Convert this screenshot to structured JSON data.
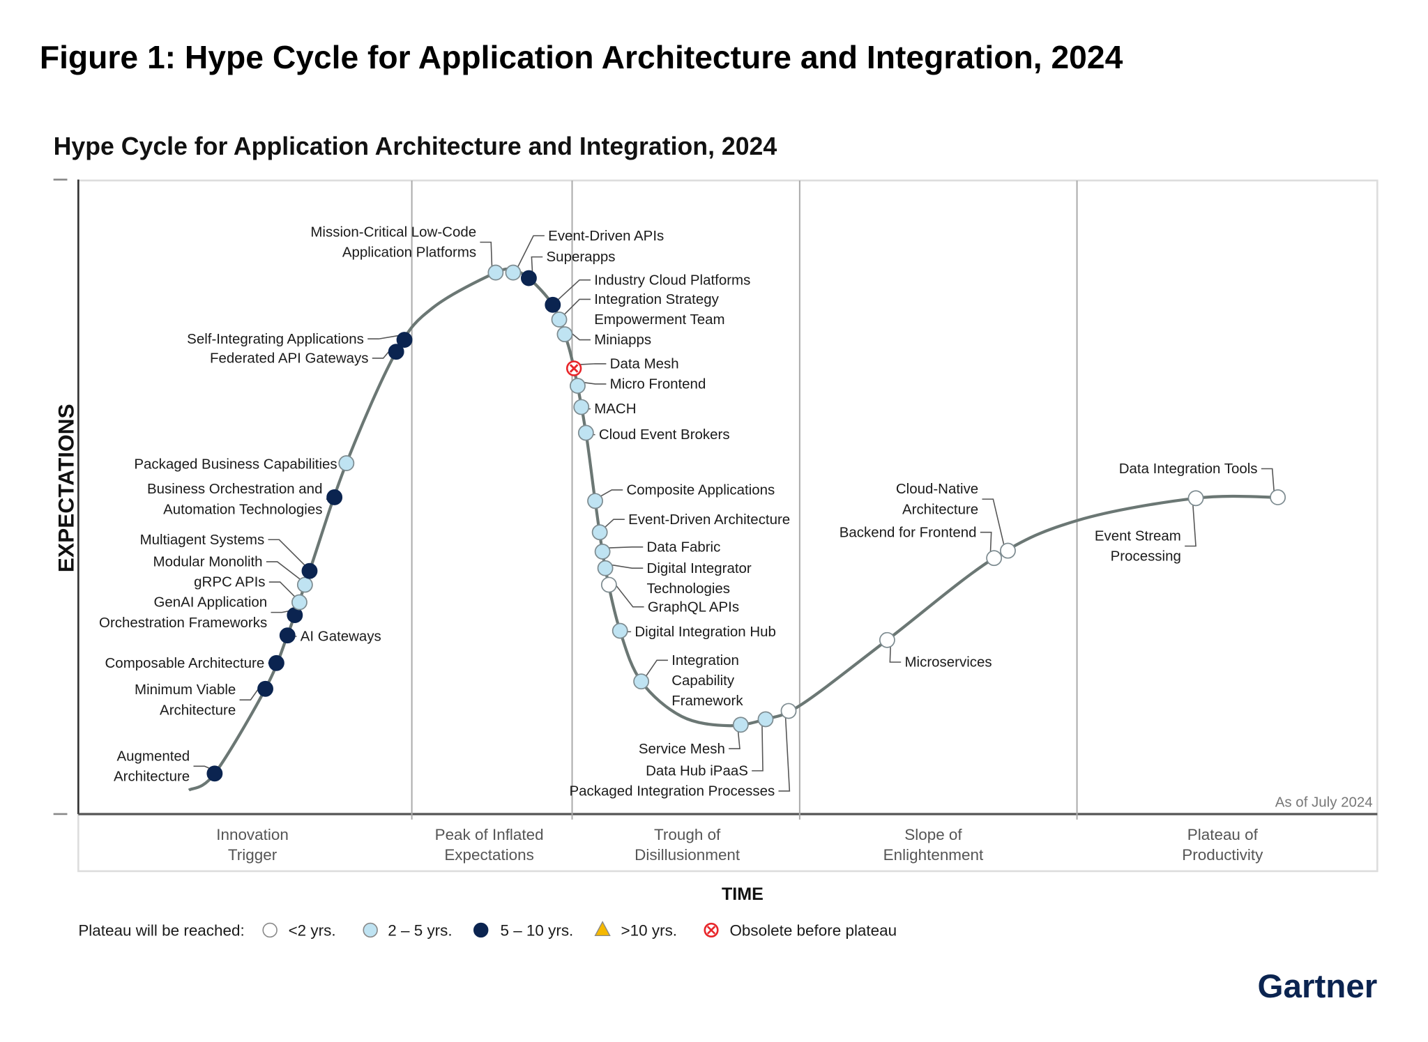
{
  "figure_title": "Figure 1: Hype Cycle for Application Architecture and Integration, 2024",
  "chart_data": {
    "type": "hype-cycle",
    "title": "Hype Cycle for Application Architecture and Integration, 2024",
    "ylabel": "EXPECTATIONS",
    "xlabel": "TIME",
    "as_of": "As of July 2024",
    "phases": [
      [
        "Innovation",
        "Trigger"
      ],
      [
        "Peak of Inflated",
        "Expectations"
      ],
      [
        "Trough of",
        "Disillusionment"
      ],
      [
        "Slope of",
        "Enlightenment"
      ],
      [
        "Plateau of",
        "Productivity"
      ]
    ],
    "legend": {
      "title": "Plateau will be reached:",
      "entries": [
        {
          "key": "lt2",
          "label": "<2 yrs.",
          "color": "#ffffff"
        },
        {
          "key": "2to5",
          "label": "2 – 5 yrs.",
          "color": "#bfe3f2"
        },
        {
          "key": "5to10",
          "label": "5 – 10 yrs.",
          "color": "#0b2450"
        },
        {
          "key": "gt10",
          "label": ">10 yrs.",
          "color": "#f5b800"
        },
        {
          "key": "obsolete",
          "label": "Obsolete before plateau",
          "color": "#e8262a"
        }
      ]
    },
    "items": [
      {
        "lines": [
          "Augmented",
          "Architecture"
        ],
        "phase": "Innovation Trigger",
        "plateau": "5to10"
      },
      {
        "lines": [
          "Minimum Viable",
          "Architecture"
        ],
        "phase": "Innovation Trigger",
        "plateau": "5to10"
      },
      {
        "lines": [
          "Composable Architecture"
        ],
        "phase": "Innovation Trigger",
        "plateau": "5to10"
      },
      {
        "lines": [
          "AI Gateways"
        ],
        "phase": "Innovation Trigger",
        "plateau": "5to10"
      },
      {
        "lines": [
          "GenAI Application",
          "Orchestration Frameworks"
        ],
        "phase": "Innovation Trigger",
        "plateau": "5to10"
      },
      {
        "lines": [
          "gRPC APIs"
        ],
        "phase": "Innovation Trigger",
        "plateau": "2to5"
      },
      {
        "lines": [
          "Modular Monolith"
        ],
        "phase": "Innovation Trigger",
        "plateau": "2to5"
      },
      {
        "lines": [
          "Multiagent Systems"
        ],
        "phase": "Innovation Trigger",
        "plateau": "5to10"
      },
      {
        "lines": [
          "Business Orchestration and",
          "Automation Technologies"
        ],
        "phase": "Innovation Trigger",
        "plateau": "5to10"
      },
      {
        "lines": [
          "Packaged Business Capabilities"
        ],
        "phase": "Innovation Trigger",
        "plateau": "2to5"
      },
      {
        "lines": [
          "Federated API Gateways"
        ],
        "phase": "Innovation Trigger",
        "plateau": "5to10"
      },
      {
        "lines": [
          "Self-Integrating Applications"
        ],
        "phase": "Innovation Trigger",
        "plateau": "5to10"
      },
      {
        "lines": [
          "Mission-Critical Low-Code",
          "Application Platforms"
        ],
        "phase": "Peak of Inflated Expectations",
        "plateau": "2to5"
      },
      {
        "lines": [
          "Event-Driven APIs"
        ],
        "phase": "Peak of Inflated Expectations",
        "plateau": "2to5"
      },
      {
        "lines": [
          "Superapps"
        ],
        "phase": "Peak of Inflated Expectations",
        "plateau": "5to10"
      },
      {
        "lines": [
          "Industry Cloud Platforms"
        ],
        "phase": "Peak of Inflated Expectations",
        "plateau": "5to10"
      },
      {
        "lines": [
          "Integration Strategy",
          "Empowerment Team"
        ],
        "phase": "Peak of Inflated Expectations",
        "plateau": "2to5"
      },
      {
        "lines": [
          "Miniapps"
        ],
        "phase": "Peak of Inflated Expectations",
        "plateau": "2to5"
      },
      {
        "lines": [
          "Data Mesh"
        ],
        "phase": "Trough of Disillusionment",
        "plateau": "obsolete"
      },
      {
        "lines": [
          "Micro Frontend"
        ],
        "phase": "Trough of Disillusionment",
        "plateau": "2to5"
      },
      {
        "lines": [
          "MACH"
        ],
        "phase": "Trough of Disillusionment",
        "plateau": "2to5"
      },
      {
        "lines": [
          "Cloud Event Brokers"
        ],
        "phase": "Trough of Disillusionment",
        "plateau": "2to5"
      },
      {
        "lines": [
          "Composite Applications"
        ],
        "phase": "Trough of Disillusionment",
        "plateau": "2to5"
      },
      {
        "lines": [
          "Event-Driven Architecture"
        ],
        "phase": "Trough of Disillusionment",
        "plateau": "2to5"
      },
      {
        "lines": [
          "Data Fabric"
        ],
        "phase": "Trough of Disillusionment",
        "plateau": "2to5"
      },
      {
        "lines": [
          "Digital Integrator",
          "Technologies"
        ],
        "phase": "Trough of Disillusionment",
        "plateau": "2to5"
      },
      {
        "lines": [
          "GraphQL APIs"
        ],
        "phase": "Trough of Disillusionment",
        "plateau": "lt2"
      },
      {
        "lines": [
          "Digital Integration Hub"
        ],
        "phase": "Trough of Disillusionment",
        "plateau": "2to5"
      },
      {
        "lines": [
          "Integration",
          "Capability",
          "Framework"
        ],
        "phase": "Trough of Disillusionment",
        "plateau": "2to5"
      },
      {
        "lines": [
          "Service Mesh"
        ],
        "phase": "Trough of Disillusionment",
        "plateau": "2to5"
      },
      {
        "lines": [
          "Data Hub iPaaS"
        ],
        "phase": "Trough of Disillusionment",
        "plateau": "2to5"
      },
      {
        "lines": [
          "Packaged Integration Processes"
        ],
        "phase": "Trough of Disillusionment",
        "plateau": "lt2"
      },
      {
        "lines": [
          "Microservices"
        ],
        "phase": "Slope of Enlightenment",
        "plateau": "lt2"
      },
      {
        "lines": [
          "Backend for Frontend"
        ],
        "phase": "Slope of Enlightenment",
        "plateau": "lt2"
      },
      {
        "lines": [
          "Cloud-Native",
          "Architecture"
        ],
        "phase": "Slope of Enlightenment",
        "plateau": "lt2"
      },
      {
        "lines": [
          "Event Stream",
          "Processing"
        ],
        "phase": "Plateau of Productivity",
        "plateau": "lt2"
      },
      {
        "lines": [
          "Data Integration Tools"
        ],
        "phase": "Plateau of Productivity",
        "plateau": "lt2"
      }
    ]
  },
  "logo": "Gartner"
}
